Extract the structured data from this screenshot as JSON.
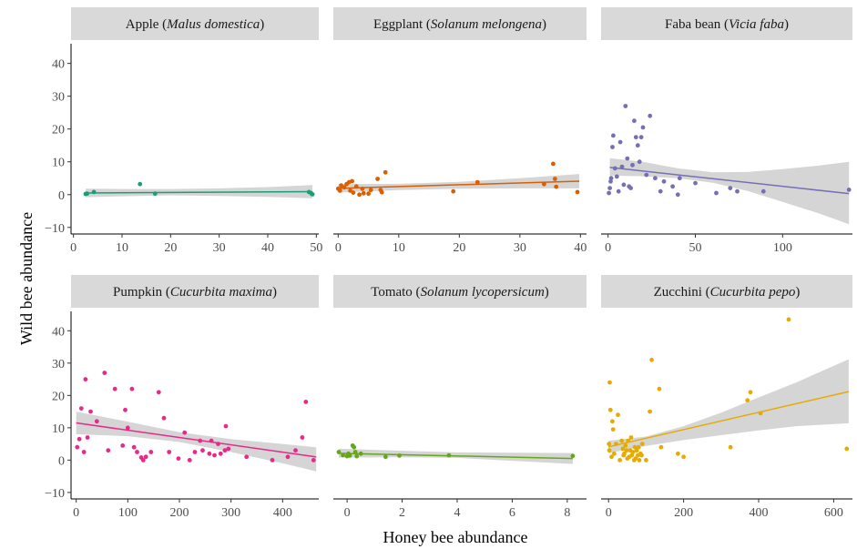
{
  "chart_data": {
    "type": "scatter",
    "xlabel": "Honey bee abundance",
    "ylabel": "Wild bee abundance",
    "ylim": [
      -12,
      46
    ],
    "yticks": [
      -10,
      0,
      10,
      20,
      30,
      40
    ],
    "grid": false,
    "legend": "none",
    "panels": [
      {
        "id": "apple",
        "title_common": "Apple",
        "title_species": "Malus domestica",
        "color": "#1b9e77",
        "xlim": [
          -0.5,
          50.5
        ],
        "xticks": [
          0,
          10,
          20,
          30,
          40,
          50
        ],
        "points": [
          [
            2.5,
            0.2
          ],
          [
            2.8,
            0.3
          ],
          [
            4.2,
            0.8
          ],
          [
            13.7,
            3.2
          ],
          [
            16.8,
            0.3
          ],
          [
            48.5,
            0.8
          ],
          [
            49,
            0.3
          ],
          [
            49.2,
            0.1
          ]
        ],
        "fit": {
          "x": [
            2.5,
            49.2
          ],
          "y": [
            0.5,
            0.9
          ]
        },
        "band": {
          "x": [
            2.5,
            10,
            20,
            30,
            40,
            49.2
          ],
          "upper": [
            1.8,
            1.7,
            1.7,
            1.9,
            2.3,
            2.9
          ],
          "lower": [
            -0.8,
            -0.5,
            -0.2,
            -0.4,
            -0.7,
            -1.1
          ]
        }
      },
      {
        "id": "eggplant",
        "title_common": "Eggplant",
        "title_species": "Solanum melongena",
        "color": "#d95f02",
        "xlim": [
          -0.8,
          41
        ],
        "xticks": [
          0,
          10,
          20,
          30,
          40
        ],
        "points": [
          [
            0,
            1.8
          ],
          [
            0.3,
            1.2
          ],
          [
            0.5,
            2.8
          ],
          [
            1,
            2.2
          ],
          [
            1.4,
            3.2
          ],
          [
            1.8,
            3.8
          ],
          [
            2,
            1.2
          ],
          [
            2.3,
            4.1
          ],
          [
            2.5,
            0.6
          ],
          [
            3,
            2.5
          ],
          [
            3.5,
            0
          ],
          [
            4,
            1.8
          ],
          [
            4.2,
            0.4
          ],
          [
            5,
            0.3
          ],
          [
            5.4,
            1.4
          ],
          [
            6.5,
            4.8
          ],
          [
            7,
            1.4
          ],
          [
            7.2,
            0.7
          ],
          [
            7.8,
            6.8
          ],
          [
            19,
            1
          ],
          [
            23,
            3.8
          ],
          [
            34,
            3.2
          ],
          [
            35.5,
            9.4
          ],
          [
            35.8,
            4.8
          ],
          [
            36,
            2.4
          ],
          [
            39.5,
            0.8
          ]
        ],
        "fit": {
          "x": [
            0,
            39.8
          ],
          "y": [
            1.9,
            4.1
          ]
        },
        "band": {
          "x": [
            0,
            10,
            20,
            30,
            39.8
          ],
          "upper": [
            3.2,
            3.3,
            3.9,
            5.0,
            6.3
          ],
          "lower": [
            0.6,
            1.4,
            1.8,
            1.9,
            1.9
          ]
        }
      },
      {
        "id": "faba",
        "title_common": "Faba bean",
        "title_species": "Vicia faba",
        "color": "#7570b3",
        "xlim": [
          -4,
          140
        ],
        "xticks": [
          0,
          50,
          100
        ],
        "points": [
          [
            0.5,
            0.5
          ],
          [
            1,
            2
          ],
          [
            1.5,
            4
          ],
          [
            1.8,
            5
          ],
          [
            2.5,
            14.5
          ],
          [
            3,
            18
          ],
          [
            4,
            8
          ],
          [
            5,
            5.5
          ],
          [
            6,
            1
          ],
          [
            7,
            16
          ],
          [
            8,
            8.5
          ],
          [
            9,
            3
          ],
          [
            10,
            27
          ],
          [
            11,
            11
          ],
          [
            12,
            2.5
          ],
          [
            13,
            2
          ],
          [
            14,
            9
          ],
          [
            15,
            22.5
          ],
          [
            16,
            17.5
          ],
          [
            17,
            15
          ],
          [
            18,
            10
          ],
          [
            19,
            17.5
          ],
          [
            20,
            20.5
          ],
          [
            22,
            6
          ],
          [
            24,
            24
          ],
          [
            27,
            5
          ],
          [
            30,
            1
          ],
          [
            32,
            4
          ],
          [
            37,
            2.5
          ],
          [
            40,
            0
          ],
          [
            41,
            5
          ],
          [
            50,
            3.5
          ],
          [
            62,
            0.5
          ],
          [
            70,
            2
          ],
          [
            74,
            1
          ],
          [
            89,
            1
          ],
          [
            138,
            1.5
          ]
        ],
        "fit": {
          "x": [
            1,
            138
          ],
          "y": [
            8.3,
            0.3
          ]
        },
        "band": {
          "x": [
            1,
            20,
            40,
            60,
            80,
            100,
            120,
            138
          ],
          "upper": [
            11.1,
            10.0,
            8.0,
            6.8,
            6.9,
            7.8,
            8.8,
            10.0
          ],
          "lower": [
            5.8,
            5.6,
            5.0,
            3.6,
            1.1,
            -2.2,
            -5.6,
            -9.0
          ]
        }
      },
      {
        "id": "pumpkin",
        "title_common": "Pumpkin",
        "title_species": "Cucurbita maxima",
        "color": "#e7298a",
        "xlim": [
          -10,
          470
        ],
        "xticks": [
          0,
          100,
          200,
          300,
          400
        ],
        "points": [
          [
            2,
            4
          ],
          [
            6,
            6.5
          ],
          [
            10,
            16
          ],
          [
            15,
            2.5
          ],
          [
            18,
            25
          ],
          [
            22,
            7
          ],
          [
            28,
            15
          ],
          [
            40,
            12
          ],
          [
            55,
            27
          ],
          [
            62,
            3
          ],
          [
            75,
            22
          ],
          [
            90,
            4.5
          ],
          [
            95,
            15.5
          ],
          [
            100,
            10
          ],
          [
            108,
            22
          ],
          [
            112,
            4
          ],
          [
            118,
            2.5
          ],
          [
            126,
            0.8
          ],
          [
            130,
            0
          ],
          [
            135,
            1
          ],
          [
            145,
            2.5
          ],
          [
            160,
            21
          ],
          [
            170,
            13
          ],
          [
            180,
            2.5
          ],
          [
            198,
            0.5
          ],
          [
            210,
            8.5
          ],
          [
            220,
            0
          ],
          [
            230,
            2.5
          ],
          [
            240,
            6
          ],
          [
            245,
            3
          ],
          [
            258,
            2
          ],
          [
            262,
            6
          ],
          [
            268,
            1.5
          ],
          [
            275,
            5
          ],
          [
            280,
            2
          ],
          [
            288,
            3
          ],
          [
            290,
            10.5
          ],
          [
            295,
            3.5
          ],
          [
            330,
            1
          ],
          [
            380,
            0
          ],
          [
            410,
            1
          ],
          [
            425,
            3
          ],
          [
            438,
            7
          ],
          [
            445,
            18
          ],
          [
            460,
            0
          ]
        ],
        "fit": {
          "x": [
            0,
            465
          ],
          "y": [
            11.5,
            1
          ]
        },
        "band": {
          "x": [
            0,
            100,
            200,
            300,
            400,
            465
          ],
          "upper": [
            15,
            11.9,
            8.6,
            6.5,
            5.0,
            4.0
          ],
          "lower": [
            8,
            7.4,
            5.6,
            2.5,
            -1.0,
            -3.5
          ]
        }
      },
      {
        "id": "tomato",
        "title_common": "Tomato",
        "title_species": "Solanum lycopersicum",
        "color": "#66a61e",
        "xlim": [
          -0.5,
          8.7
        ],
        "xticks": [
          0,
          2,
          4,
          6,
          8
        ],
        "points": [
          [
            -0.3,
            2.5
          ],
          [
            -0.15,
            1.5
          ],
          [
            0,
            1.2
          ],
          [
            0.05,
            2
          ],
          [
            0.1,
            1.4
          ],
          [
            0.2,
            4.5
          ],
          [
            0.25,
            4
          ],
          [
            0.3,
            2.5
          ],
          [
            0.35,
            1.2
          ],
          [
            0.5,
            2
          ],
          [
            1.4,
            1
          ],
          [
            1.9,
            1.4
          ],
          [
            3.7,
            1.5
          ],
          [
            8.2,
            1.3
          ]
        ],
        "fit": {
          "x": [
            -0.3,
            8.2
          ],
          "y": [
            2.1,
            0.5
          ]
        },
        "band": {
          "x": [
            -0.3,
            2,
            4,
            6,
            8.2
          ],
          "upper": [
            3.5,
            2.9,
            2.4,
            2.3,
            2.2
          ],
          "lower": [
            0.8,
            0.9,
            0.7,
            -0.2,
            -1.2
          ]
        }
      },
      {
        "id": "zucchini",
        "title_common": "Zucchini",
        "title_species": "Cucurbita pepo",
        "color": "#e6ab02",
        "xlim": [
          -20,
          650
        ],
        "xticks": [
          0,
          200,
          400,
          600
        ],
        "points": [
          [
            1,
            5
          ],
          [
            2,
            3
          ],
          [
            3,
            24
          ],
          [
            5,
            15.5
          ],
          [
            8,
            1
          ],
          [
            10,
            12
          ],
          [
            12,
            9.5
          ],
          [
            15,
            2
          ],
          [
            20,
            5
          ],
          [
            25,
            14
          ],
          [
            30,
            0
          ],
          [
            35,
            6
          ],
          [
            38,
            3.5
          ],
          [
            40,
            1.5
          ],
          [
            42,
            2
          ],
          [
            45,
            4.5
          ],
          [
            48,
            3
          ],
          [
            50,
            0.5
          ],
          [
            52,
            6
          ],
          [
            55,
            1
          ],
          [
            58,
            3
          ],
          [
            60,
            7
          ],
          [
            62,
            1.5
          ],
          [
            65,
            2.5
          ],
          [
            68,
            0
          ],
          [
            70,
            4
          ],
          [
            72,
            0.5
          ],
          [
            75,
            3
          ],
          [
            78,
            1.5
          ],
          [
            80,
            4
          ],
          [
            82,
            0
          ],
          [
            85,
            2
          ],
          [
            88,
            1.5
          ],
          [
            90,
            5
          ],
          [
            100,
            0
          ],
          [
            110,
            15
          ],
          [
            115,
            31
          ],
          [
            135,
            22
          ],
          [
            140,
            4
          ],
          [
            185,
            2
          ],
          [
            200,
            1
          ],
          [
            325,
            4
          ],
          [
            370,
            18.5
          ],
          [
            378,
            21
          ],
          [
            405,
            14.5
          ],
          [
            480,
            43.5
          ],
          [
            635,
            3.5
          ]
        ],
        "fit": {
          "x": [
            0,
            640
          ],
          "y": [
            4.1,
            21.2
          ]
        },
        "band": {
          "x": [
            0,
            100,
            200,
            300,
            400,
            500,
            640
          ],
          "upper": [
            6.0,
            7.3,
            10.5,
            14.7,
            19.4,
            24.0,
            31.2
          ],
          "lower": [
            2.2,
            4.4,
            6.2,
            7.7,
            9.2,
            10.5,
            11.4
          ]
        }
      }
    ]
  }
}
